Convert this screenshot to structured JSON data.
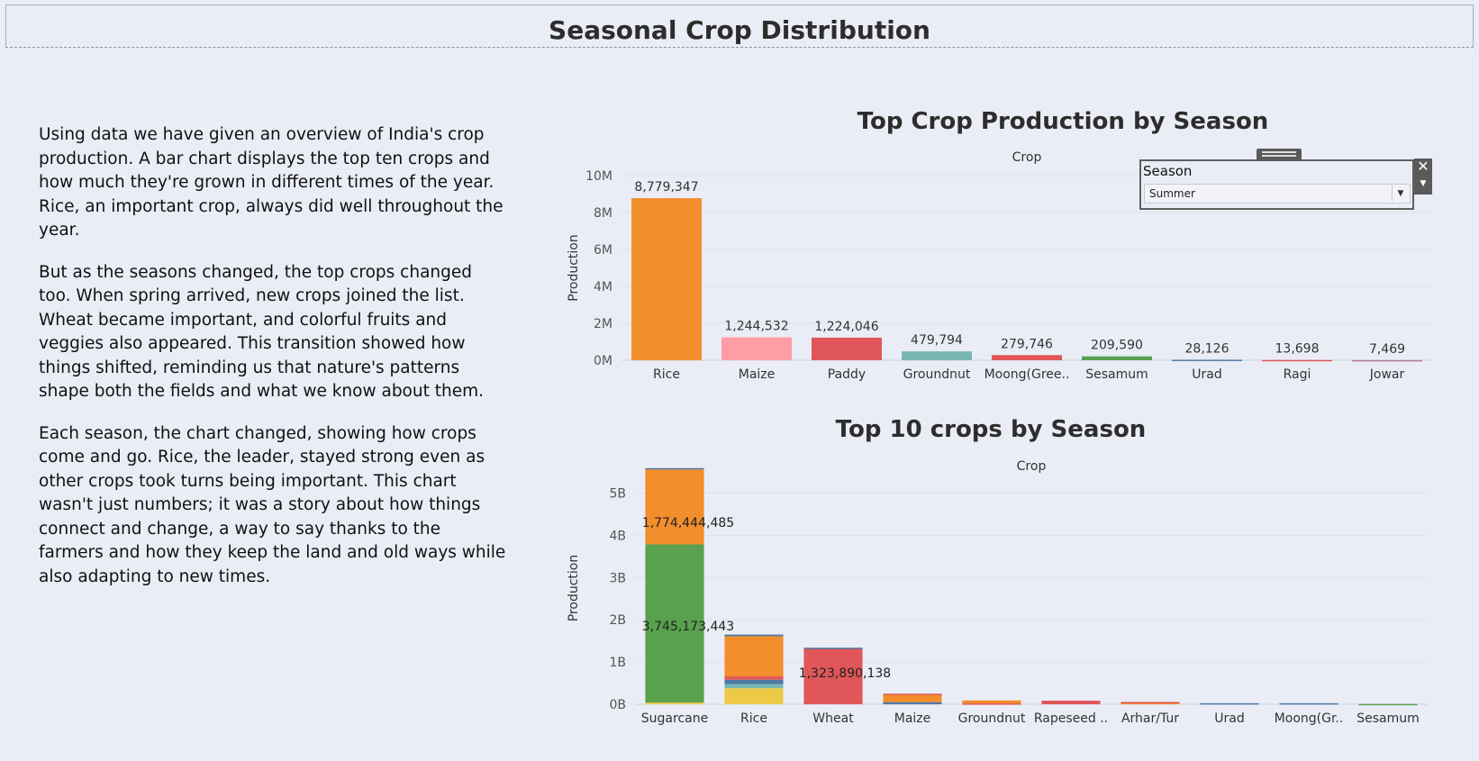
{
  "dashboard": {
    "title": "Seasonal Crop Distribution"
  },
  "narrative": {
    "paragraphs": [
      "Using data we have given an overview of India's crop production. A bar chart displays the top ten crops and how much they're grown in different times of the year. Rice, an important crop, always did well throughout the year.",
      "But as the seasons changed, the top crops changed too. When spring arrived, new crops joined the list. Wheat became important, and colorful fruits and veggies also appeared. This transition showed how things shifted, reminding us that nature's patterns shape both the fields and what we know about them.",
      "Each season, the chart changed, showing how crops come and go. Rice, the leader, stayed strong even as other crops took turns being important. This chart wasn't just numbers; it was a story about how things connect and change, a way to say thanks to the farmers and how they keep the land and old ways while also adapting to new times."
    ]
  },
  "filter": {
    "label": "Season",
    "value": "Summer"
  },
  "chart_data": [
    {
      "type": "bar",
      "title": "Top Crop Production by Season",
      "header": "Crop",
      "ylabel": "Production",
      "ylim": [
        0,
        10000000
      ],
      "yticks": [
        0,
        2000000,
        4000000,
        6000000,
        8000000,
        10000000
      ],
      "ytick_labels": [
        "0M",
        "2M",
        "4M",
        "6M",
        "8M",
        "10M"
      ],
      "categories": [
        "Rice",
        "Maize",
        "Paddy",
        "Groundnut",
        "Moong(Gree..",
        "Sesamum",
        "Urad",
        "Ragi",
        "Jowar"
      ],
      "values": [
        8779347,
        1244532,
        1224046,
        479794,
        279746,
        209590,
        28126,
        13698,
        7469
      ],
      "value_labels": [
        "8,779,347",
        "1,244,532",
        "1,224,046",
        "479,794",
        "279,746",
        "209,590",
        "28,126",
        "13,698",
        "7,469"
      ],
      "colors": [
        "#f28e2b",
        "#ff9da7",
        "#e15759",
        "#76b7b2",
        "#e15759",
        "#59a14f",
        "#4e79a7",
        "#e15759",
        "#b07aa1"
      ],
      "grid": true
    },
    {
      "type": "bar",
      "stacked": true,
      "title": "Top 10 crops by Season",
      "header": "Crop",
      "ylabel": "Production",
      "ylim": [
        0,
        5500000000
      ],
      "yticks": [
        0,
        1000000000,
        2000000000,
        3000000000,
        4000000000,
        5000000000
      ],
      "ytick_labels": [
        "0B",
        "1B",
        "2B",
        "3B",
        "4B",
        "5B"
      ],
      "categories": [
        "Sugarcane",
        "Rice",
        "Wheat",
        "Maize",
        "Groundnut",
        "Rapeseed ..",
        "Arhar/Tur",
        "Urad",
        "Moong(Gr..",
        "Sesamum"
      ],
      "stacks": [
        [
          {
            "value": 40000000,
            "color": "#edc948"
          },
          {
            "value": 3745173443,
            "color": "#59a14f",
            "label": "3,745,173,443"
          },
          {
            "value": 1774444485,
            "color": "#f28e2b",
            "label": "1,774,444,485"
          },
          {
            "value": 30000000,
            "color": "#4e79a7"
          }
        ],
        [
          {
            "value": 380000000,
            "color": "#edc948"
          },
          {
            "value": 100000000,
            "color": "#76b7b2"
          },
          {
            "value": 100000000,
            "color": "#4e79a7"
          },
          {
            "value": 80000000,
            "color": "#e15759"
          },
          {
            "value": 950000000,
            "color": "#f28e2b"
          },
          {
            "value": 40000000,
            "color": "#4e79a7"
          }
        ],
        [
          {
            "value": 1323890138,
            "color": "#e15759",
            "label": "1,323,890,138"
          },
          {
            "value": 15000000,
            "color": "#4e79a7"
          }
        ],
        [
          {
            "value": 50000000,
            "color": "#4e79a7"
          },
          {
            "value": 180000000,
            "color": "#f28e2b"
          },
          {
            "value": 20000000,
            "color": "#e15759"
          }
        ],
        [
          {
            "value": 20000000,
            "color": "#e15759"
          },
          {
            "value": 70000000,
            "color": "#f28e2b"
          }
        ],
        [
          {
            "value": 85000000,
            "color": "#e15759"
          }
        ],
        [
          {
            "value": 45000000,
            "color": "#f28e2b"
          },
          {
            "value": 10000000,
            "color": "#e15759"
          }
        ],
        [
          {
            "value": 25000000,
            "color": "#4e79a7"
          }
        ],
        [
          {
            "value": 25000000,
            "color": "#4e79a7"
          }
        ],
        [
          {
            "value": 8000000,
            "color": "#59a14f"
          }
        ]
      ],
      "grid": true
    }
  ]
}
